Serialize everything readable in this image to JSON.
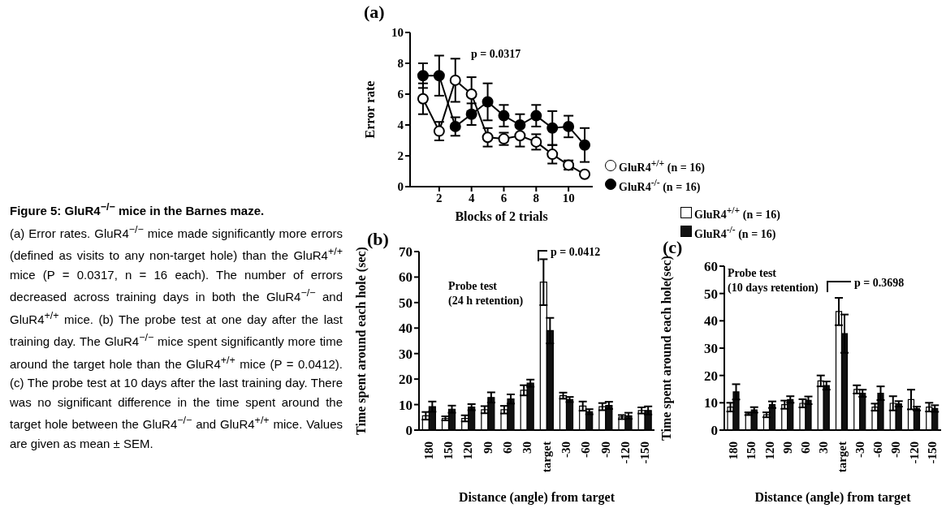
{
  "chart_data": [
    {
      "type": "line",
      "title": "(a)",
      "xlabel": "Blocks of 2 trials",
      "ylabel": "Error rate",
      "x": [
        1,
        2,
        3,
        4,
        5,
        6,
        7,
        8,
        9,
        10,
        11
      ],
      "xlim": [
        0.2,
        11.5
      ],
      "xticks": [
        2,
        4,
        6,
        8,
        10
      ],
      "ylim": [
        0,
        10
      ],
      "yticks": [
        0,
        2,
        4,
        6,
        8,
        10
      ],
      "marker": "circle",
      "legend": "right",
      "annotations": [
        "p = 0.0317"
      ],
      "series": [
        {
          "name": "GluR4$^{+/+}$ (n = 16)",
          "color": "#ffffff",
          "values": [
            5.7,
            3.6,
            6.9,
            6.0,
            3.2,
            3.1,
            3.3,
            2.9,
            2.1,
            1.4,
            0.8
          ],
          "errors": [
            1.0,
            0.6,
            1.4,
            1.1,
            0.6,
            0.4,
            0.7,
            0.5,
            0.6,
            0.3,
            null
          ]
        },
        {
          "name": "GluR4$^{-/-}$ (n = 16)",
          "color": "#000000",
          "values": [
            7.2,
            7.2,
            3.9,
            4.7,
            5.5,
            4.6,
            4.0,
            4.6,
            3.8,
            3.9,
            2.7
          ],
          "errors": [
            0.8,
            1.3,
            0.6,
            0.7,
            1.2,
            0.7,
            0.7,
            0.7,
            1.1,
            0.7,
            1.1
          ]
        }
      ]
    },
    {
      "type": "other",
      "title": "Figure 5: GluR4$^{−/−}$ mice in the Barnes maze.",
      "annotations": [
        "(a) Error rates. GluR4$^{−/−}$ mice made significantly more errors (defined as visits to any non-target hole) than the GluR4$^{+/+}$ mice (P = 0.0317, n = 16 each). The number of errors decreased across training days in both the GluR4$^{−/−}$ and GluR4$^{+/+}$ mice. (b) The probe test at one day after the last training day. The GluR4$^{−/−}$ mice spent significantly more time around the target hole than the GluR4$^{+/+}$ mice (P = 0.0412). (c) The probe test at 10 days after the last training day. There was no significant difference in the time spent around the target hole between the GluR4$^{−/−}$ and GluR4$^{+/+}$ mice. Values are given as mean ± SEM."
      ]
    },
    {
      "type": "bar",
      "title": "(b)",
      "xlabel": "Distance (angle) from target",
      "ylabel": "Time spent around each hole (sec)",
      "categories": [
        "180",
        "150",
        "120",
        "90",
        "60",
        "30",
        "target",
        "-30",
        "-60",
        "-90",
        "-120",
        "-150"
      ],
      "ylim": [
        0,
        70
      ],
      "yticks": [
        0,
        10,
        20,
        30,
        40,
        50,
        60,
        70
      ],
      "annotations": [
        "Probe test\n(24 h retention)",
        "p = 0.0412"
      ],
      "series": [
        {
          "color": "#ffffff",
          "values": [
            5.6,
            4.6,
            4.6,
            8.0,
            8.0,
            15.6,
            58,
            13.5,
            9.4,
            9.2,
            5.1,
            7.7
          ],
          "errors": [
            1.5,
            0.8,
            1.2,
            1.4,
            1.5,
            2.0,
            9,
            1.2,
            1.8,
            1.4,
            0.8,
            1.2
          ]
        },
        {
          "color": "#111111",
          "values": [
            9.2,
            8.2,
            9.0,
            12.8,
            12.2,
            18.4,
            39,
            12,
            7.2,
            9.7,
            5.6,
            7.7
          ],
          "errors": [
            2.0,
            1.4,
            1.2,
            2.0,
            1.8,
            1.4,
            5,
            1.0,
            1.0,
            1.4,
            1.2,
            1.6
          ]
        }
      ]
    },
    {
      "type": "bar",
      "title": "(c)",
      "xlabel": "Distance (angle) from target",
      "ylabel": "Time spent around each hole(sec)",
      "categories": [
        "180",
        "150",
        "120",
        "90",
        "60",
        "30",
        "target",
        "-30",
        "-60",
        "-90",
        "-120",
        "-150"
      ],
      "ylim": [
        0,
        60
      ],
      "yticks": [
        0,
        10,
        20,
        30,
        40,
        50,
        60
      ],
      "legend": "top",
      "annotations": [
        "Probe test\n(10 days retention)",
        "p = 0.3698"
      ],
      "series": [
        {
          "name": "GluR4$^{+/+}$ (n = 16)",
          "color": "#ffffff",
          "values": [
            8.4,
            6.0,
            5.6,
            9.3,
            9.8,
            18,
            43.4,
            14.9,
            8.4,
            9.8,
            11.2,
            8.4
          ],
          "errors": [
            1.6,
            0.5,
            0.9,
            1.5,
            1.5,
            2.0,
            5,
            1.5,
            1.3,
            2.6,
            3.6,
            1.6
          ]
        },
        {
          "name": "GluR4$^{-/-}$ (n = 16)",
          "color": "#111111",
          "values": [
            14,
            7.4,
            9.3,
            11.2,
            10.9,
            16.3,
            35.3,
            13.5,
            13.5,
            9.6,
            7.9,
            7.9
          ],
          "errors": [
            2.8,
            1.0,
            1.2,
            1.2,
            1.4,
            1.5,
            7,
            1.3,
            2.5,
            1.0,
            0.7,
            1.2
          ]
        }
      ]
    }
  ]
}
